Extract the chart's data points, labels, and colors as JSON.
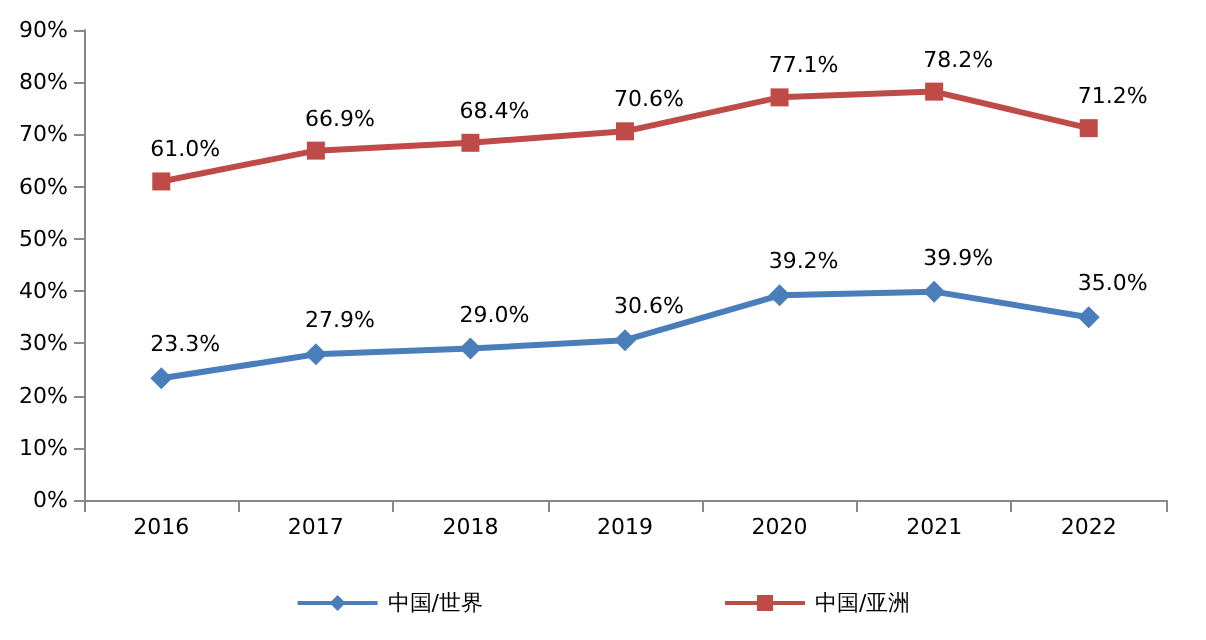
{
  "chart_data": {
    "type": "line",
    "categories": [
      "2016",
      "2017",
      "2018",
      "2019",
      "2020",
      "2021",
      "2022"
    ],
    "series": [
      {
        "name": "中国/世界",
        "color": "#4a7ebb",
        "marker": "diamond",
        "values": [
          23.3,
          27.9,
          29.0,
          30.6,
          39.2,
          39.9,
          35.0
        ],
        "value_labels": [
          "23.3%",
          "27.9%",
          "29.0%",
          "30.6%",
          "39.2%",
          "39.9%",
          "35.0%"
        ]
      },
      {
        "name": "中国/亚洲",
        "color": "#be4b48",
        "marker": "square",
        "values": [
          61.0,
          66.9,
          68.4,
          70.6,
          77.1,
          78.2,
          71.2
        ],
        "value_labels": [
          "61.0%",
          "66.9%",
          "68.4%",
          "70.6%",
          "77.1%",
          "78.2%",
          "71.2%"
        ]
      }
    ],
    "ylim": [
      0,
      90
    ],
    "yticks": [
      {
        "value": 0,
        "label": "0%"
      },
      {
        "value": 10,
        "label": "10%"
      },
      {
        "value": 20,
        "label": "20%"
      },
      {
        "value": 30,
        "label": "30%"
      },
      {
        "value": 40,
        "label": "40%"
      },
      {
        "value": 50,
        "label": "50%"
      },
      {
        "value": 60,
        "label": "60%"
      },
      {
        "value": 70,
        "label": "70%"
      },
      {
        "value": 80,
        "label": "80%"
      },
      {
        "value": 90,
        "label": "90%"
      }
    ],
    "grid": false,
    "legend": "bottom",
    "line_style": "solid"
  }
}
